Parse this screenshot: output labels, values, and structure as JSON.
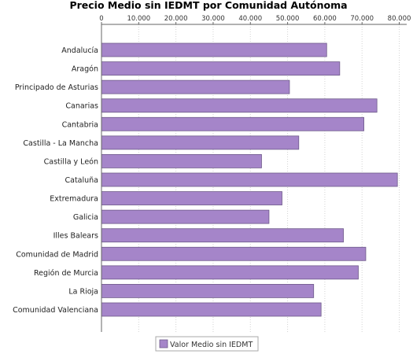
{
  "chart_data": {
    "type": "bar",
    "orientation": "horizontal",
    "title": "Precio Medio sin IEDMT por Comunidad Autónoma",
    "categories": [
      "Andalucía",
      "Aragón",
      "Principado de Asturias",
      "Canarias",
      "Cantabria",
      "Castilla - La Mancha",
      "Castilla y León",
      "Cataluña",
      "Extremadura",
      "Galicia",
      "Illes Balears",
      "Comunidad de Madrid",
      "Región de Murcia",
      "La Rioja",
      "Comunidad Valenciana"
    ],
    "series": [
      {
        "name": "Valor Medio sin IEDMT",
        "values": [
          60500,
          64000,
          50500,
          74000,
          70500,
          53000,
          43000,
          79500,
          48500,
          45000,
          65000,
          71000,
          69000,
          57000,
          59000
        ]
      }
    ],
    "xlim": [
      0,
      82000
    ],
    "xticks": [
      "0",
      "10.000",
      "20.000",
      "30.000",
      "40.000",
      "50.000",
      "60.000",
      "70.000",
      "80.000"
    ],
    "xtick_values": [
      0,
      10000,
      20000,
      30000,
      40000,
      50000,
      60000,
      70000,
      80000
    ],
    "x_axis_position": "top",
    "grid": true,
    "legend_position": "bottom",
    "colors": {
      "bar_fill": "#a585c9",
      "bar_stroke": "#6e5a8a",
      "grid": "#d3d3d3",
      "axis": "#666666",
      "legend_border": "#aaaaaa"
    }
  }
}
